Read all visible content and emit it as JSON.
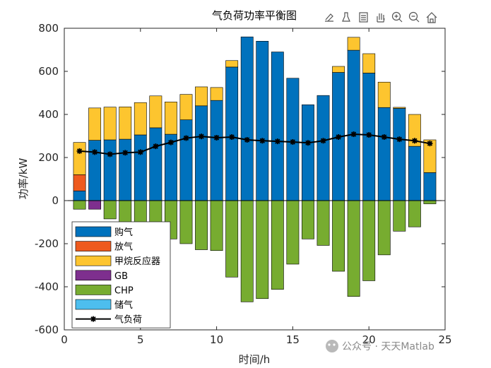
{
  "chart_data": {
    "type": "bar",
    "stacked": true,
    "title": "气负荷功率平衡图",
    "xlabel": "时间/h",
    "ylabel": "功率/kW",
    "xlim": [
      0,
      25
    ],
    "ylim": [
      -600,
      800
    ],
    "xticks": [
      0,
      5,
      10,
      15,
      20,
      25
    ],
    "yticks": [
      -600,
      -400,
      -200,
      0,
      200,
      400,
      600,
      800
    ],
    "x": [
      1,
      2,
      3,
      4,
      5,
      6,
      7,
      8,
      9,
      10,
      11,
      12,
      13,
      14,
      15,
      16,
      17,
      18,
      19,
      20,
      21,
      22,
      23,
      24
    ],
    "series": [
      {
        "name": "购气",
        "color": "#0072BD",
        "values": [
          45,
          280,
          282,
          285,
          305,
          338,
          308,
          375,
          440,
          465,
          620,
          760,
          740,
          690,
          568,
          445,
          488,
          595,
          698,
          592,
          432,
          428,
          252,
          130
        ]
      },
      {
        "name": "放气",
        "color": "#EE5A1E",
        "values": [
          75,
          0,
          0,
          0,
          0,
          0,
          0,
          0,
          0,
          0,
          0,
          0,
          0,
          0,
          0,
          0,
          0,
          0,
          0,
          0,
          0,
          0,
          0,
          0
        ]
      },
      {
        "name": "甲烷反应器",
        "color": "#FDC52F",
        "values": [
          150,
          150,
          152,
          150,
          150,
          148,
          150,
          118,
          88,
          60,
          30,
          0,
          0,
          0,
          0,
          0,
          0,
          28,
          60,
          90,
          118,
          5,
          148,
          152
        ]
      },
      {
        "name": "GB",
        "color": "#7E2F8E",
        "values": [
          0,
          -40,
          0,
          0,
          0,
          0,
          0,
          0,
          0,
          0,
          0,
          0,
          0,
          0,
          0,
          0,
          0,
          0,
          0,
          0,
          0,
          0,
          0,
          0
        ]
      },
      {
        "name": "CHP",
        "color": "#77AC30",
        "values": [
          -40,
          0,
          -85,
          -100,
          -118,
          -153,
          -178,
          -200,
          -228,
          -232,
          -355,
          -470,
          -455,
          -412,
          -295,
          -178,
          -208,
          -328,
          -445,
          -372,
          -252,
          -142,
          -122,
          -15
        ]
      },
      {
        "name": "储气",
        "color": "#4DBEEE",
        "values": [
          0,
          0,
          0,
          0,
          0,
          0,
          0,
          0,
          0,
          0,
          0,
          0,
          0,
          0,
          0,
          0,
          0,
          0,
          0,
          0,
          0,
          0,
          0,
          0
        ]
      }
    ],
    "line": {
      "name": "气负荷",
      "color": "#000000",
      "values": [
        230,
        225,
        215,
        222,
        225,
        252,
        270,
        290,
        298,
        292,
        295,
        282,
        278,
        275,
        272,
        268,
        278,
        295,
        308,
        305,
        295,
        285,
        278,
        265
      ]
    },
    "legend_location": "bottom-left"
  },
  "watermark": "公众号 · 天天Matlab",
  "toolbar": [
    "brush-icon",
    "data-tip-icon",
    "save-icon",
    "pan-icon",
    "zoom-in-icon",
    "zoom-out-icon",
    "home-icon"
  ]
}
